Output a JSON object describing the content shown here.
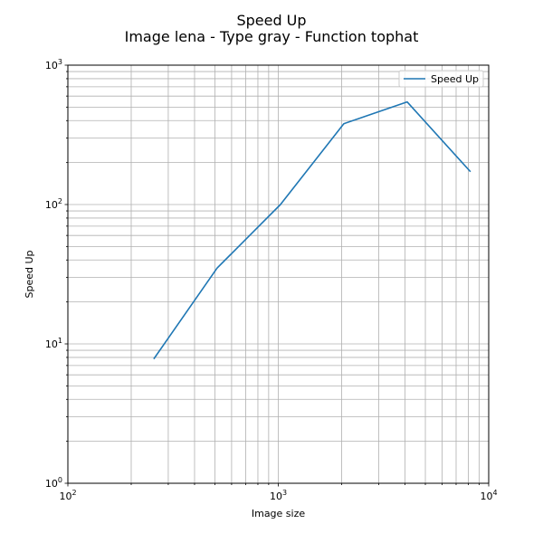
{
  "chart_data": {
    "type": "line",
    "title": "Speed Up",
    "subtitle": "Image lena - Type gray - Function tophat",
    "xlabel": "Image size",
    "ylabel": "Speed Up",
    "xscale": "log",
    "yscale": "log",
    "xlim": [
      100,
      10000
    ],
    "ylim": [
      1,
      1000
    ],
    "x_ticks": [
      100,
      1000,
      10000
    ],
    "y_ticks": [
      1,
      10,
      100,
      1000
    ],
    "grid": "major and minor",
    "legend_position": "top-right",
    "series": [
      {
        "name": "Speed Up",
        "color": "#1f77b4",
        "x": [
          256,
          512,
          1024,
          2048,
          4096,
          8192
        ],
        "y": [
          7.8,
          35,
          100,
          380,
          545,
          172
        ]
      }
    ]
  }
}
